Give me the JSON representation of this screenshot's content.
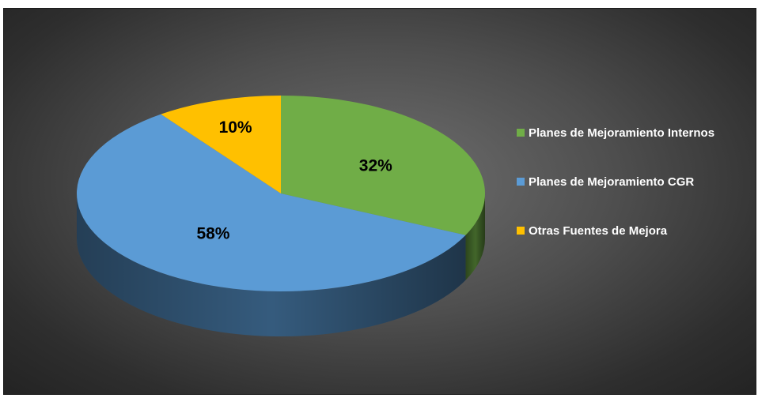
{
  "chart_data": {
    "type": "pie",
    "three_d": true,
    "categories": [
      "Planes de Mejoramiento Internos",
      "Planes de Mejoramiento CGR",
      "Otras Fuentes de Mejora"
    ],
    "values": [
      32,
      58,
      10
    ],
    "labels": [
      "32%",
      "58%",
      "10%"
    ],
    "colors": [
      "#70AD47",
      "#5B9BD5",
      "#FFC000"
    ],
    "legend": "right",
    "title": ""
  }
}
